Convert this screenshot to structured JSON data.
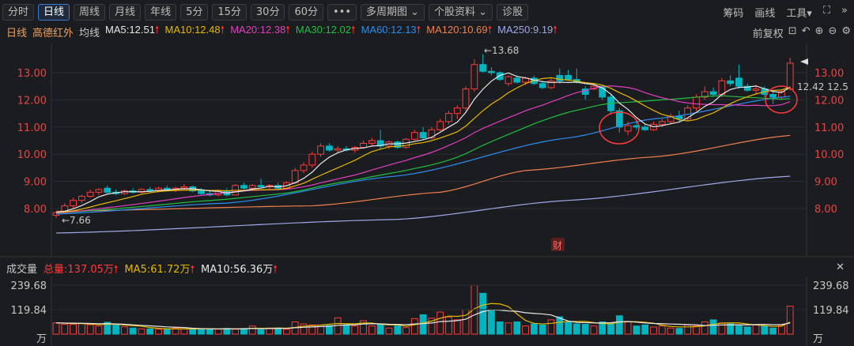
{
  "toolbar": {
    "tabs": [
      "分时",
      "日线",
      "周线",
      "月线",
      "年线",
      "5分",
      "15分",
      "30分",
      "60分",
      "•••",
      "多周期图 ⌄",
      "个股资料 ⌄",
      "诊股"
    ],
    "active": 1,
    "right": [
      "筹码",
      "画线",
      "工具▾",
      "⛶",
      "»"
    ]
  },
  "ma_bar": {
    "period": "日线",
    "stock": "高德红外",
    "type": "均线",
    "items": [
      {
        "label": "MA5:12.51",
        "color": "#e8e8e8"
      },
      {
        "label": "MA10:12.48",
        "color": "#e6b800"
      },
      {
        "label": "MA20:12.38",
        "color": "#e040c0"
      },
      {
        "label": "MA30:12.02",
        "color": "#20c040"
      },
      {
        "label": "MA60:12.13",
        "color": "#2a8ef0"
      },
      {
        "label": "MA120:10.69",
        "color": "#f08050"
      },
      {
        "label": "MA250:9.19",
        "color": "#a0a8e8"
      }
    ],
    "arrow": "🠕",
    "adjust": "前复权",
    "icons": [
      "lock-icon",
      "undo-icon",
      "zoom-in-icon",
      "zoom-out-icon",
      "gear-icon"
    ]
  },
  "vol_bar": {
    "title": "成交量",
    "total": "总量:137.05万",
    "ma5": "MA5:61.72万",
    "ma10": "MA10:56.36万",
    "arrow": "🠕",
    "close": "✕"
  },
  "colors": {
    "up": "#ff3b3b",
    "down": "#00b4c0",
    "circle": "#ff3b3b"
  },
  "chart_data": {
    "type": "candlestick",
    "price_ticks": [
      "13.00",
      "12.00",
      "11.00",
      "10.00",
      "9.00",
      "8.00"
    ],
    "price_range": [
      6.7,
      14.0
    ],
    "high_label": "←13.68",
    "low_label": "←7.66",
    "current_label": "12.42 12.5",
    "badge": "财",
    "vol_ticks": [
      "239.68",
      "119.84",
      "万"
    ],
    "ohlc": [
      [
        7.75,
        7.9,
        7.66,
        7.85
      ],
      [
        7.85,
        8.2,
        7.8,
        8.1
      ],
      [
        8.1,
        8.4,
        8,
        8.3
      ],
      [
        8.3,
        8.5,
        8.2,
        8.45
      ],
      [
        8.45,
        8.7,
        8.4,
        8.6
      ],
      [
        8.6,
        8.75,
        8.5,
        8.7
      ],
      [
        8.75,
        8.85,
        8.55,
        8.6
      ],
      [
        8.6,
        8.7,
        8.5,
        8.55
      ],
      [
        8.55,
        8.7,
        8.5,
        8.65
      ],
      [
        8.65,
        8.75,
        8.55,
        8.6
      ],
      [
        8.6,
        8.75,
        8.55,
        8.7
      ],
      [
        8.7,
        8.8,
        8.6,
        8.65
      ],
      [
        8.65,
        8.8,
        8.6,
        8.75
      ],
      [
        8.75,
        8.85,
        8.65,
        8.7
      ],
      [
        8.7,
        8.8,
        8.6,
        8.75
      ],
      [
        8.75,
        8.9,
        8.7,
        8.8
      ],
      [
        8.8,
        8.85,
        8.6,
        8.65
      ],
      [
        8.65,
        8.75,
        8.5,
        8.55
      ],
      [
        8.55,
        8.65,
        8.45,
        8.5
      ],
      [
        8.5,
        8.7,
        8.45,
        8.65
      ],
      [
        8.65,
        8.75,
        8.45,
        8.5
      ],
      [
        8.5,
        8.9,
        8.5,
        8.85
      ],
      [
        8.85,
        8.95,
        8.7,
        8.75
      ],
      [
        8.75,
        8.9,
        8.65,
        8.85
      ],
      [
        8.85,
        9.1,
        8.75,
        8.8
      ],
      [
        8.8,
        8.9,
        8.7,
        8.85
      ],
      [
        8.85,
        8.95,
        8.7,
        8.75
      ],
      [
        8.75,
        9,
        8.7,
        8.95
      ],
      [
        8.95,
        9.5,
        8.9,
        9.4
      ],
      [
        9.4,
        9.7,
        9.3,
        9.6
      ],
      [
        9.6,
        10.1,
        9.5,
        10
      ],
      [
        10,
        10.4,
        9.9,
        10.3
      ],
      [
        10.3,
        10.4,
        10.1,
        10.15
      ],
      [
        10.15,
        10.3,
        10.05,
        10.2
      ],
      [
        10.2,
        10.3,
        10.1,
        10.15
      ],
      [
        10.15,
        10.3,
        10.05,
        10.25
      ],
      [
        10.25,
        10.5,
        10.2,
        10.4
      ],
      [
        10.4,
        10.6,
        10.3,
        10.5
      ],
      [
        10.5,
        10.9,
        10.2,
        10.3
      ],
      [
        10.3,
        10.5,
        10.2,
        10.45
      ],
      [
        10.45,
        10.5,
        10.2,
        10.25
      ],
      [
        10.25,
        10.6,
        10.2,
        10.55
      ],
      [
        10.55,
        10.9,
        10.5,
        10.8
      ],
      [
        10.8,
        11,
        10.55,
        10.6
      ],
      [
        10.6,
        11,
        10.55,
        10.9
      ],
      [
        10.9,
        11.3,
        10.85,
        11.2
      ],
      [
        11.2,
        11.6,
        11.1,
        11.5
      ],
      [
        11.5,
        11.8,
        11.3,
        11.7
      ],
      [
        11.7,
        12.5,
        11.6,
        12.4
      ],
      [
        12.4,
        13.5,
        12.3,
        13.3
      ],
      [
        13.3,
        13.68,
        13,
        13.05
      ],
      [
        13.05,
        13.2,
        12.9,
        13
      ],
      [
        13,
        13.05,
        12.7,
        12.75
      ],
      [
        12.6,
        12.9,
        12.5,
        12.85
      ],
      [
        12.8,
        12.9,
        12.6,
        12.65
      ],
      [
        12.65,
        12.85,
        12.55,
        12.8
      ],
      [
        12.8,
        12.9,
        12.55,
        12.6
      ],
      [
        12.6,
        12.7,
        12.4,
        12.45
      ],
      [
        12.45,
        12.8,
        12.4,
        12.7
      ],
      [
        12.9,
        13.15,
        12.6,
        12.7
      ],
      [
        12.9,
        13.1,
        12.7,
        12.75
      ],
      [
        12.75,
        13.15,
        12.6,
        12.65
      ],
      [
        12.4,
        12.5,
        12,
        12.2
      ],
      [
        12.4,
        12.6,
        12.35,
        12.5
      ],
      [
        12.5,
        12.55,
        12,
        12.1
      ],
      [
        12.1,
        12.2,
        11.5,
        11.6
      ],
      [
        11.6,
        11.7,
        10.8,
        11
      ],
      [
        10.85,
        11.2,
        10.7,
        11.05
      ],
      [
        11.05,
        11.25,
        10.9,
        11
      ],
      [
        11,
        11.1,
        10.85,
        10.9
      ],
      [
        10.9,
        11.2,
        10.85,
        11.1
      ],
      [
        11.1,
        11.3,
        11,
        11.2
      ],
      [
        11.2,
        11.5,
        11.1,
        11.4
      ],
      [
        11.4,
        11.6,
        11.2,
        11.3
      ],
      [
        11.3,
        11.8,
        11.2,
        11.7
      ],
      [
        11.7,
        12.2,
        11.6,
        12.1
      ],
      [
        12.1,
        12.5,
        12,
        12.3
      ],
      [
        12.3,
        12.45,
        12.1,
        12.2
      ],
      [
        12.2,
        12.8,
        12.1,
        12.7
      ],
      [
        12.7,
        12.9,
        12.5,
        12.6
      ],
      [
        12.8,
        13.3,
        12.4,
        12.5
      ],
      [
        12.5,
        12.6,
        12.3,
        12.35
      ],
      [
        12.35,
        12.55,
        12.2,
        12.4
      ],
      [
        12.4,
        12.5,
        12.1,
        12.2
      ],
      [
        12.2,
        12.3,
        11.85,
        12.1
      ],
      [
        12.1,
        12.35,
        12,
        12.3
      ],
      [
        12.4,
        13.55,
        12.35,
        13.35
      ]
    ],
    "volume": [
      55,
      48,
      48,
      52,
      46,
      40,
      58,
      44,
      36,
      30,
      26,
      26,
      24,
      25,
      30,
      25,
      24,
      27,
      26,
      25,
      28,
      24,
      28,
      40,
      22,
      30,
      30,
      24,
      60,
      50,
      45,
      44,
      42,
      80,
      45,
      40,
      66,
      40,
      50,
      30,
      40,
      32,
      76,
      95,
      78,
      108,
      84,
      70,
      120,
      239,
      200,
      120,
      60,
      55,
      60,
      40,
      50,
      45,
      70,
      85,
      60,
      50,
      48,
      40,
      60,
      55,
      90,
      60,
      40,
      45,
      35,
      40,
      30,
      28,
      45,
      40,
      60,
      70,
      55,
      50,
      40,
      35,
      45,
      40,
      30,
      45,
      137
    ],
    "ma60": [
      [
        0,
        7.8
      ],
      [
        20,
        8.2
      ],
      [
        40,
        9.2
      ],
      [
        60,
        10.6
      ],
      [
        70,
        11.3
      ],
      [
        86,
        12.13
      ]
    ],
    "ma120": [
      [
        0,
        7.9
      ],
      [
        30,
        8.1
      ],
      [
        45,
        8.6
      ],
      [
        55,
        9.4
      ],
      [
        70,
        9.9
      ],
      [
        86,
        10.69
      ]
    ],
    "ma250": [
      [
        0,
        7.1
      ],
      [
        40,
        7.6
      ],
      [
        60,
        8.3
      ],
      [
        86,
        9.19
      ]
    ]
  }
}
